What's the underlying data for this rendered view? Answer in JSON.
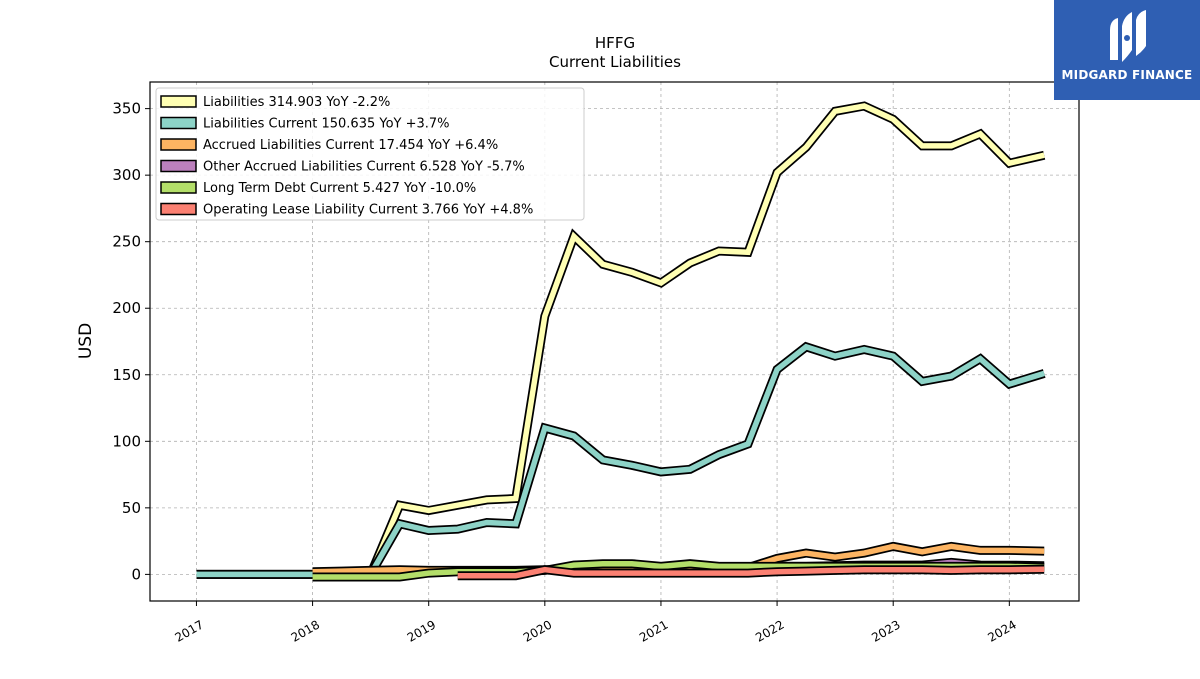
{
  "brand": {
    "name": "MIDGARD FINANCE",
    "bg_color": "#2f5fb3",
    "icon": "mf-monogram-icon"
  },
  "chart_data": {
    "type": "area",
    "title": "HFFG",
    "subtitle": "Current  Liabilities",
    "xlabel": "",
    "ylabel": "USD",
    "xlim": [
      2016.6,
      2024.6
    ],
    "ylim": [
      -20,
      370
    ],
    "x_ticks": [
      "2017",
      "2018",
      "2019",
      "2020",
      "2021",
      "2022",
      "2023",
      "2024"
    ],
    "y_ticks": [
      0,
      50,
      100,
      150,
      200,
      250,
      300,
      350
    ],
    "grid": true,
    "legend_position": "top-left",
    "series": [
      {
        "name": "Liabilities",
        "legend": "Liabilities  314.903 YoY -2.2%",
        "color": "#ffffb3",
        "points": [
          [
            2017.0,
            0
          ],
          [
            2017.25,
            0
          ],
          [
            2017.5,
            0
          ],
          [
            2017.75,
            0
          ],
          [
            2018.0,
            0
          ],
          [
            2018.25,
            0
          ],
          [
            2018.5,
            0
          ],
          [
            2018.75,
            52
          ],
          [
            2019.0,
            48
          ],
          [
            2019.25,
            52
          ],
          [
            2019.5,
            56
          ],
          [
            2019.75,
            57
          ],
          [
            2020.0,
            194
          ],
          [
            2020.25,
            254
          ],
          [
            2020.5,
            233
          ],
          [
            2020.75,
            227
          ],
          [
            2021.0,
            219
          ],
          [
            2021.25,
            234
          ],
          [
            2021.5,
            243
          ],
          [
            2021.75,
            242
          ],
          [
            2022.0,
            302
          ],
          [
            2022.25,
            321
          ],
          [
            2022.5,
            348
          ],
          [
            2022.75,
            352
          ],
          [
            2023.0,
            342
          ],
          [
            2023.25,
            322
          ],
          [
            2023.5,
            322
          ],
          [
            2023.75,
            331
          ],
          [
            2024.0,
            309
          ],
          [
            2024.3,
            315
          ]
        ]
      },
      {
        "name": "Liabilities Current",
        "legend": "Liabilities Current  150.635 YoY +3.7%",
        "color": "#8dd3c7",
        "points": [
          [
            2017.0,
            0
          ],
          [
            2017.25,
            0
          ],
          [
            2017.5,
            0
          ],
          [
            2017.75,
            0
          ],
          [
            2018.0,
            0
          ],
          [
            2018.25,
            0
          ],
          [
            2018.5,
            0
          ],
          [
            2018.75,
            38
          ],
          [
            2019.0,
            33
          ],
          [
            2019.25,
            34
          ],
          [
            2019.5,
            39
          ],
          [
            2019.75,
            38
          ],
          [
            2020.0,
            110
          ],
          [
            2020.25,
            104
          ],
          [
            2020.5,
            86
          ],
          [
            2020.75,
            82
          ],
          [
            2021.0,
            77
          ],
          [
            2021.25,
            79
          ],
          [
            2021.5,
            90
          ],
          [
            2021.75,
            98
          ],
          [
            2022.0,
            154
          ],
          [
            2022.25,
            171
          ],
          [
            2022.5,
            164
          ],
          [
            2022.75,
            169
          ],
          [
            2023.0,
            164
          ],
          [
            2023.25,
            145
          ],
          [
            2023.5,
            149
          ],
          [
            2023.75,
            162
          ],
          [
            2024.0,
            143
          ],
          [
            2024.3,
            151
          ]
        ]
      },
      {
        "name": "Accrued Liabilities Current",
        "legend": "Accrued Liabilities Current  17.454 YoY +6.4%",
        "color": "#fdb462",
        "points": [
          [
            2018.0,
            2
          ],
          [
            2018.25,
            2.5
          ],
          [
            2018.5,
            3
          ],
          [
            2018.75,
            3.5
          ],
          [
            2019.0,
            3
          ],
          [
            2019.25,
            3
          ],
          [
            2019.5,
            3
          ],
          [
            2019.75,
            3
          ],
          [
            2020.0,
            3.5
          ],
          [
            2020.25,
            4
          ],
          [
            2020.5,
            4
          ],
          [
            2020.75,
            4
          ],
          [
            2021.0,
            4
          ],
          [
            2021.25,
            4.5
          ],
          [
            2021.5,
            5
          ],
          [
            2021.75,
            5
          ],
          [
            2022.0,
            12
          ],
          [
            2022.25,
            16
          ],
          [
            2022.5,
            13
          ],
          [
            2022.75,
            16
          ],
          [
            2023.0,
            21
          ],
          [
            2023.25,
            17
          ],
          [
            2023.5,
            21
          ],
          [
            2023.75,
            18
          ],
          [
            2024.0,
            18
          ],
          [
            2024.3,
            17.5
          ]
        ]
      },
      {
        "name": "Other Accrued Liabilities Current",
        "legend": "Other Accrued Liabilities Current  6.528 YoY -5.7%",
        "color": "#bc80bd",
        "points": [
          [
            2022.0,
            6
          ],
          [
            2022.25,
            6
          ],
          [
            2022.5,
            6.5
          ],
          [
            2022.75,
            7
          ],
          [
            2023.0,
            7
          ],
          [
            2023.25,
            7
          ],
          [
            2023.5,
            9
          ],
          [
            2023.75,
            7
          ],
          [
            2024.0,
            6.9
          ],
          [
            2024.3,
            6.5
          ]
        ]
      },
      {
        "name": "Long Term Debt Current",
        "legend": "Long Term Debt Current  5.427 YoY -10.0%",
        "color": "#b3de69",
        "points": [
          [
            2018.0,
            -2
          ],
          [
            2018.25,
            -2
          ],
          [
            2018.5,
            -2
          ],
          [
            2018.75,
            -2
          ],
          [
            2019.0,
            1
          ],
          [
            2019.25,
            2
          ],
          [
            2019.5,
            2
          ],
          [
            2019.75,
            2
          ],
          [
            2020.0,
            3
          ],
          [
            2020.25,
            7
          ],
          [
            2020.5,
            8
          ],
          [
            2020.75,
            8
          ],
          [
            2021.0,
            6
          ],
          [
            2021.25,
            8
          ],
          [
            2021.5,
            6
          ],
          [
            2021.75,
            6
          ],
          [
            2022.0,
            6
          ],
          [
            2022.25,
            6
          ],
          [
            2022.5,
            6
          ],
          [
            2022.75,
            6
          ],
          [
            2023.0,
            6
          ],
          [
            2023.25,
            6
          ],
          [
            2023.5,
            6
          ],
          [
            2023.75,
            6
          ],
          [
            2024.0,
            6
          ],
          [
            2024.3,
            5.4
          ]
        ]
      },
      {
        "name": "Operating Lease Liability Current",
        "legend": "Operating Lease Liability Current  3.766 YoY +4.8%",
        "color": "#fb8072",
        "points": [
          [
            2019.25,
            -1
          ],
          [
            2019.5,
            -1
          ],
          [
            2019.75,
            -1
          ],
          [
            2020.0,
            3.5
          ],
          [
            2020.25,
            1
          ],
          [
            2020.5,
            1
          ],
          [
            2020.75,
            1
          ],
          [
            2021.0,
            1
          ],
          [
            2021.25,
            1
          ],
          [
            2021.5,
            1
          ],
          [
            2021.75,
            1
          ],
          [
            2022.0,
            2
          ],
          [
            2022.25,
            2.5
          ],
          [
            2022.5,
            3
          ],
          [
            2022.75,
            3.5
          ],
          [
            2023.0,
            3.5
          ],
          [
            2023.25,
            3.5
          ],
          [
            2023.5,
            3
          ],
          [
            2023.75,
            3.5
          ],
          [
            2024.0,
            3.5
          ],
          [
            2024.3,
            3.8
          ]
        ]
      }
    ]
  }
}
